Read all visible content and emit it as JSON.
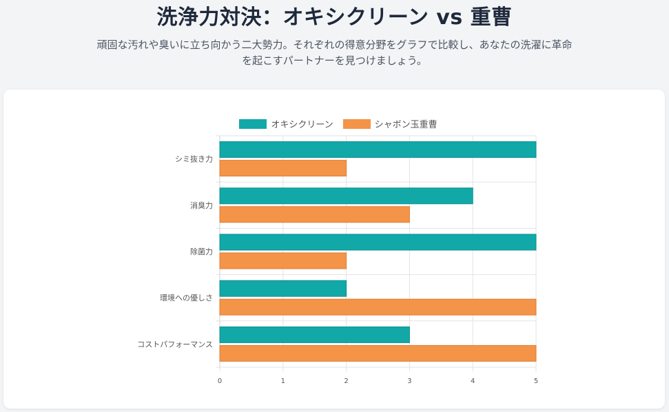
{
  "header": {
    "title": "洗浄力対決：オキシクリーン vs 重曹",
    "subtitle": "頑固な汚れや臭いに立ち向かう二大勢力。それぞれの得意分野をグラフで比較し、あなたの洗濯に革命を起こすパートナーを見つけましょう。"
  },
  "chart_data": {
    "type": "bar",
    "orientation": "horizontal",
    "categories": [
      "シミ抜き力",
      "消臭力",
      "除菌力",
      "環境への優しさ",
      "コストパフォーマンス"
    ],
    "series": [
      {
        "name": "オキシクリーン",
        "values": [
          5,
          4,
          5,
          2,
          3
        ],
        "color": "#12a8a8"
      },
      {
        "name": "シャボン玉重曹",
        "values": [
          2,
          3,
          2,
          5,
          5
        ],
        "color": "#f39449"
      }
    ],
    "xlim": [
      0,
      5
    ],
    "xticks": [
      "0",
      "1",
      "2",
      "3",
      "4",
      "5"
    ],
    "grid": true,
    "legend_position": "top"
  }
}
